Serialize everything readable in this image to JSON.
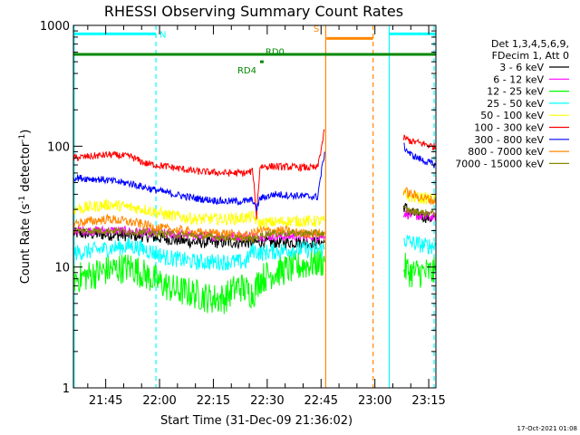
{
  "chart_data": {
    "type": "line",
    "title": "RHESSI Observing Summary Count Rates",
    "xlabel": "Start Time (31-Dec-09 21:36:02)",
    "ylabel_main": "Count Rate (s",
    "ylabel_sup1": "-1",
    "ylabel_mid": " detector",
    "ylabel_sup2": "-1",
    "ylabel_end": ")",
    "yscale": "log",
    "ylim": [
      1,
      1000
    ],
    "xlim_minutes": [
      36.0,
      137.0
    ],
    "x_tick_labels": [
      "21:45",
      "22:00",
      "22:15",
      "22:30",
      "22:45",
      "23:00",
      "23:15"
    ],
    "x_tick_minutes": [
      45,
      60,
      75,
      90,
      105,
      120,
      135
    ],
    "y_tick_labels": [
      "1",
      "10",
      "100",
      "1000"
    ],
    "y_tick_values": [
      1,
      10,
      100,
      1000
    ],
    "legend_header": [
      "Det 1,3,4,5,6,9,",
      "FDecim 1, Att 0"
    ],
    "series": [
      {
        "name": "3 - 6 keV",
        "color": "#000000",
        "segments": [
          {
            "x": [
              36,
              56,
              70,
              88,
              96,
              106
            ],
            "y": [
              19,
              18,
              16,
              16,
              16,
              16
            ]
          },
          {
            "x": [
              128,
              130,
              134,
              137
            ],
            "y": [
              32,
              28,
              26,
              25
            ]
          }
        ]
      },
      {
        "name": "6 - 12 keV",
        "color": "#ff00ff",
        "segments": [
          {
            "x": [
              36,
              48,
              60,
              72,
              90,
              106
            ],
            "y": [
              20,
              20,
              19,
              18,
              18,
              18
            ]
          },
          {
            "x": [
              128,
              130,
              134,
              137
            ],
            "y": [
              28,
              27,
              26,
              26
            ]
          }
        ]
      },
      {
        "name": "12 - 25 keV",
        "color": "#00ff00",
        "segments": [
          {
            "x": [
              36,
              40,
              46,
              52,
              58,
              64,
              70,
              74,
              78,
              82,
              86,
              88,
              92,
              98,
              104,
              106
            ],
            "y": [
              8,
              8.5,
              9.5,
              10,
              8,
              6.5,
              6,
              5.5,
              5.5,
              7,
              6,
              8,
              9,
              10,
              11,
              11
            ]
          },
          {
            "x": [
              128,
              130,
              134,
              137
            ],
            "y": [
              10,
              9,
              9,
              9
            ]
          }
        ]
      },
      {
        "name": "25 - 50 keV",
        "color": "#00ffff",
        "segments": [
          {
            "x": [
              36,
              44,
              52,
              56,
              62,
              70,
              78,
              84,
              86,
              88,
              96,
              106
            ],
            "y": [
              13,
              14,
              15,
              14,
              12,
              11,
              11,
              11,
              14,
              13,
              14,
              14
            ]
          },
          {
            "x": [
              128,
              130,
              134,
              137
            ],
            "y": [
              17,
              16,
              15,
              15
            ]
          }
        ]
      },
      {
        "name": "50 - 100 keV",
        "color": "#ffff00",
        "segments": [
          {
            "x": [
              36,
              46,
              56,
              62,
              70,
              80,
              86,
              88,
              96,
              106
            ],
            "y": [
              30,
              33,
              30,
              27,
              25,
              25,
              26,
              23,
              24,
              24
            ]
          },
          {
            "x": [
              128,
              130,
              134,
              137
            ],
            "y": [
              40,
              38,
              37,
              36
            ]
          }
        ]
      },
      {
        "name": "100 - 300 keV",
        "color": "#ff0000",
        "segments": [
          {
            "x": [
              36,
              46,
              52,
              56,
              62,
              70,
              78,
              84,
              86,
              87,
              88,
              92,
              98,
              104,
              106
            ],
            "y": [
              80,
              85,
              82,
              72,
              68,
              62,
              60,
              60,
              62,
              26,
              68,
              68,
              67,
              66,
              135
            ]
          },
          {
            "x": [
              128,
              130,
              134,
              137
            ],
            "y": [
              118,
              110,
              104,
              98
            ]
          }
        ]
      },
      {
        "name": "300 - 800 keV",
        "color": "#0000ff",
        "segments": [
          {
            "x": [
              36,
              44,
              52,
              58,
              64,
              70,
              78,
              84,
              86,
              87,
              88,
              92,
              98,
              104,
              106
            ],
            "y": [
              55,
              53,
              49,
              44,
              40,
              37,
              35,
              35,
              36,
              30,
              37,
              40,
              39,
              38,
              90
            ]
          },
          {
            "x": [
              128,
              130,
              134,
              137
            ],
            "y": [
              100,
              85,
              75,
              70
            ]
          }
        ]
      },
      {
        "name": "800 - 7000 keV",
        "color": "#ff8800",
        "segments": [
          {
            "x": [
              36,
              46,
              54,
              60,
              66,
              72,
              78,
              84,
              88,
              94,
              100,
              106
            ],
            "y": [
              23,
              25,
              23,
              21,
              20,
              19,
              19,
              18,
              20,
              20,
              19,
              19
            ]
          },
          {
            "x": [
              128,
              130,
              134,
              137
            ],
            "y": [
              43,
              40,
              37,
              35
            ]
          }
        ]
      },
      {
        "name": "7000 - 15000 keV",
        "color": "#888800",
        "segments": [
          {
            "x": [
              36,
              48,
              60,
              72,
              86,
              90,
              100,
              106
            ],
            "y": [
              20,
              20,
              19,
              18,
              17,
              19,
              19,
              19
            ]
          },
          {
            "x": [
              128,
              130,
              134,
              137
            ],
            "y": [
              30,
              29,
              28,
              28
            ]
          }
        ]
      }
    ],
    "annotations": {
      "flags": [
        {
          "label": "N",
          "color": "#00ffff",
          "level": 850,
          "spans": [
            [
              36,
              59
            ],
            [
              124,
              137
            ]
          ]
        },
        {
          "label": "S",
          "color": "#ff8800",
          "level": 780,
          "spans": [
            [
              106.5,
              119.5
            ]
          ]
        },
        {
          "label": "RD0",
          "color": "#008800",
          "level": 575,
          "spans": [
            [
              36,
              137
            ]
          ]
        },
        {
          "label": "RD4",
          "color": "#008800",
          "level": 500,
          "spans": [
            [
              88,
              89
            ]
          ]
        }
      ],
      "vlines": [
        {
          "minute": 36.2,
          "color": "#00ffff",
          "style": "solid"
        },
        {
          "minute": 59,
          "color": "#00ffff",
          "style": "dashed"
        },
        {
          "minute": 106.3,
          "color": "#ff8800",
          "style": "solid"
        },
        {
          "minute": 119.5,
          "color": "#ff8800",
          "style": "dashed"
        },
        {
          "minute": 124,
          "color": "#00ffff",
          "style": "solid"
        },
        {
          "minute": 136.5,
          "color": "#00ffff",
          "style": "dashed"
        }
      ]
    },
    "footer": "17-Oct-2021 01:08"
  }
}
